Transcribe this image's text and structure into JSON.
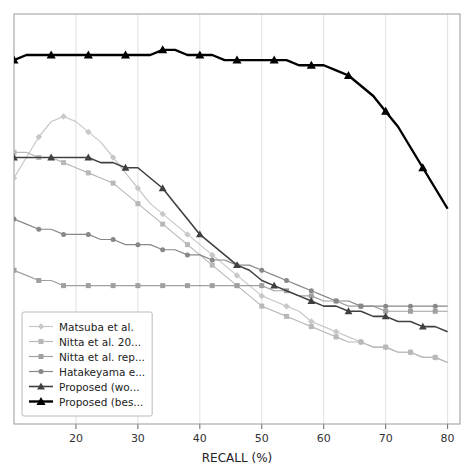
{
  "chart_data": {
    "type": "line",
    "x_label": "RECALL (%)",
    "x": [
      10,
      12,
      14,
      16,
      18,
      20,
      22,
      24,
      26,
      28,
      30,
      32,
      34,
      36,
      38,
      40,
      42,
      44,
      46,
      48,
      50,
      52,
      54,
      56,
      58,
      60,
      62,
      64,
      66,
      68,
      70,
      72,
      74,
      76,
      78,
      80
    ],
    "series": [
      {
        "name": "Matsuba et al.",
        "color": "#c8c8c8",
        "marker": "diamond",
        "values": [
          68,
          72,
          76,
          79,
          80,
          79,
          77,
          75,
          72,
          69,
          66,
          63,
          61,
          59,
          57,
          55,
          53,
          51,
          49,
          47,
          45,
          44,
          43,
          42,
          40,
          39,
          38,
          37,
          36,
          35,
          35,
          34,
          34,
          33,
          33,
          32
        ]
      },
      {
        "name": "Nitta et al. 20...",
        "color": "#b8b8b8",
        "marker": "square",
        "values": [
          73,
          73,
          72,
          72,
          71,
          70,
          69,
          68,
          67,
          65,
          63,
          61,
          59,
          57,
          55,
          53,
          51,
          49,
          47,
          45,
          43,
          42,
          41,
          40,
          39,
          38,
          37,
          36,
          36,
          35,
          35,
          34,
          34,
          33,
          33,
          32
        ]
      },
      {
        "name": "Nitta et al. rep...",
        "color": "#a0a0a0",
        "marker": "square",
        "values": [
          50,
          49,
          48,
          48,
          47,
          47,
          47,
          47,
          47,
          47,
          47,
          47,
          47,
          47,
          47,
          47,
          47,
          47,
          47,
          47,
          47,
          46,
          46,
          45,
          45,
          44,
          44,
          43,
          43,
          43,
          42,
          42,
          42,
          42,
          42,
          42
        ]
      },
      {
        "name": "Hatakeyama e...",
        "color": "#888888",
        "marker": "circle",
        "values": [
          60,
          59,
          58,
          58,
          57,
          57,
          57,
          56,
          56,
          55,
          55,
          55,
          54,
          54,
          53,
          53,
          52,
          52,
          51,
          51,
          50,
          49,
          48,
          47,
          46,
          45,
          44,
          44,
          43,
          43,
          43,
          43,
          43,
          43,
          43,
          43
        ]
      },
      {
        "name": "Proposed (wo...",
        "color": "#404040",
        "marker": "triangle",
        "values": [
          72,
          72,
          72,
          72,
          72,
          72,
          72,
          71,
          71,
          70,
          70,
          68,
          66,
          63,
          60,
          57,
          55,
          53,
          51,
          50,
          48,
          47,
          46,
          45,
          44,
          43,
          43,
          42,
          42,
          41,
          41,
          40,
          40,
          39,
          39,
          38
        ]
      },
      {
        "name": "Proposed (bes...",
        "color": "#000000",
        "marker": "triangle",
        "values": [
          91,
          92,
          92,
          92,
          92,
          92,
          92,
          92,
          92,
          92,
          92,
          92,
          93,
          93,
          92,
          92,
          92,
          91,
          91,
          91,
          91,
          91,
          91,
          90,
          90,
          90,
          89,
          88,
          86,
          84,
          81,
          78,
          74,
          70,
          66,
          62
        ]
      }
    ],
    "xlim": [
      10,
      82
    ],
    "ylim": [
      20,
      100
    ],
    "xticks": [
      20,
      30,
      40,
      50,
      60,
      70,
      80
    ],
    "grid": true,
    "tick_labels": "x",
    "legend": "lower left"
  }
}
